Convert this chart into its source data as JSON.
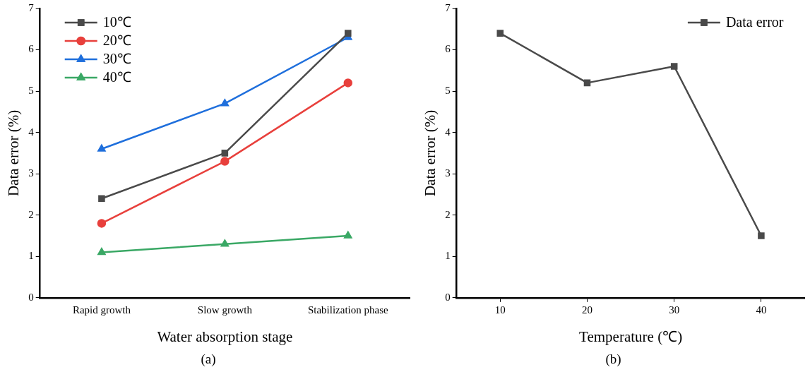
{
  "chart_data": [
    {
      "type": "line",
      "xlabel": "Water absorption stage",
      "ylabel": "Data error (%)",
      "categories": [
        "Rapid growth",
        "Slow growth",
        "Stabilization phase"
      ],
      "series": [
        {
          "name": "10℃",
          "color": "#4a4a4a",
          "marker": "square",
          "values": [
            2.4,
            3.5,
            6.4
          ]
        },
        {
          "name": "20℃",
          "color": "#e8403c",
          "marker": "circle",
          "values": [
            1.8,
            3.3,
            5.2
          ]
        },
        {
          "name": "30℃",
          "color": "#1f6fdc",
          "marker": "triangle",
          "values": [
            3.6,
            4.7,
            6.3
          ]
        },
        {
          "name": "40℃",
          "color": "#3aa865",
          "marker": "triangle",
          "values": [
            1.1,
            1.3,
            1.5
          ]
        }
      ],
      "ylim": [
        0,
        7
      ],
      "yticks": [
        0,
        1,
        2,
        3,
        4,
        5,
        6,
        7
      ],
      "grid": false,
      "legend": "top left",
      "annotations": [
        "(a)"
      ]
    },
    {
      "type": "line",
      "xlabel": "Temperature (℃)",
      "ylabel": "Data error (%)",
      "x": [
        10,
        20,
        30,
        40
      ],
      "series": [
        {
          "name": "Data error",
          "color": "#4a4a4a",
          "marker": "square",
          "values": [
            6.4,
            5.2,
            5.6,
            1.5
          ]
        }
      ],
      "xlim": [
        5,
        45
      ],
      "xticks": [
        10,
        20,
        30,
        40
      ],
      "ylim": [
        0,
        7
      ],
      "yticks": [
        0,
        1,
        2,
        3,
        4,
        5,
        6,
        7
      ],
      "grid": false,
      "legend": "top right",
      "annotations": [
        "(b)"
      ]
    }
  ]
}
